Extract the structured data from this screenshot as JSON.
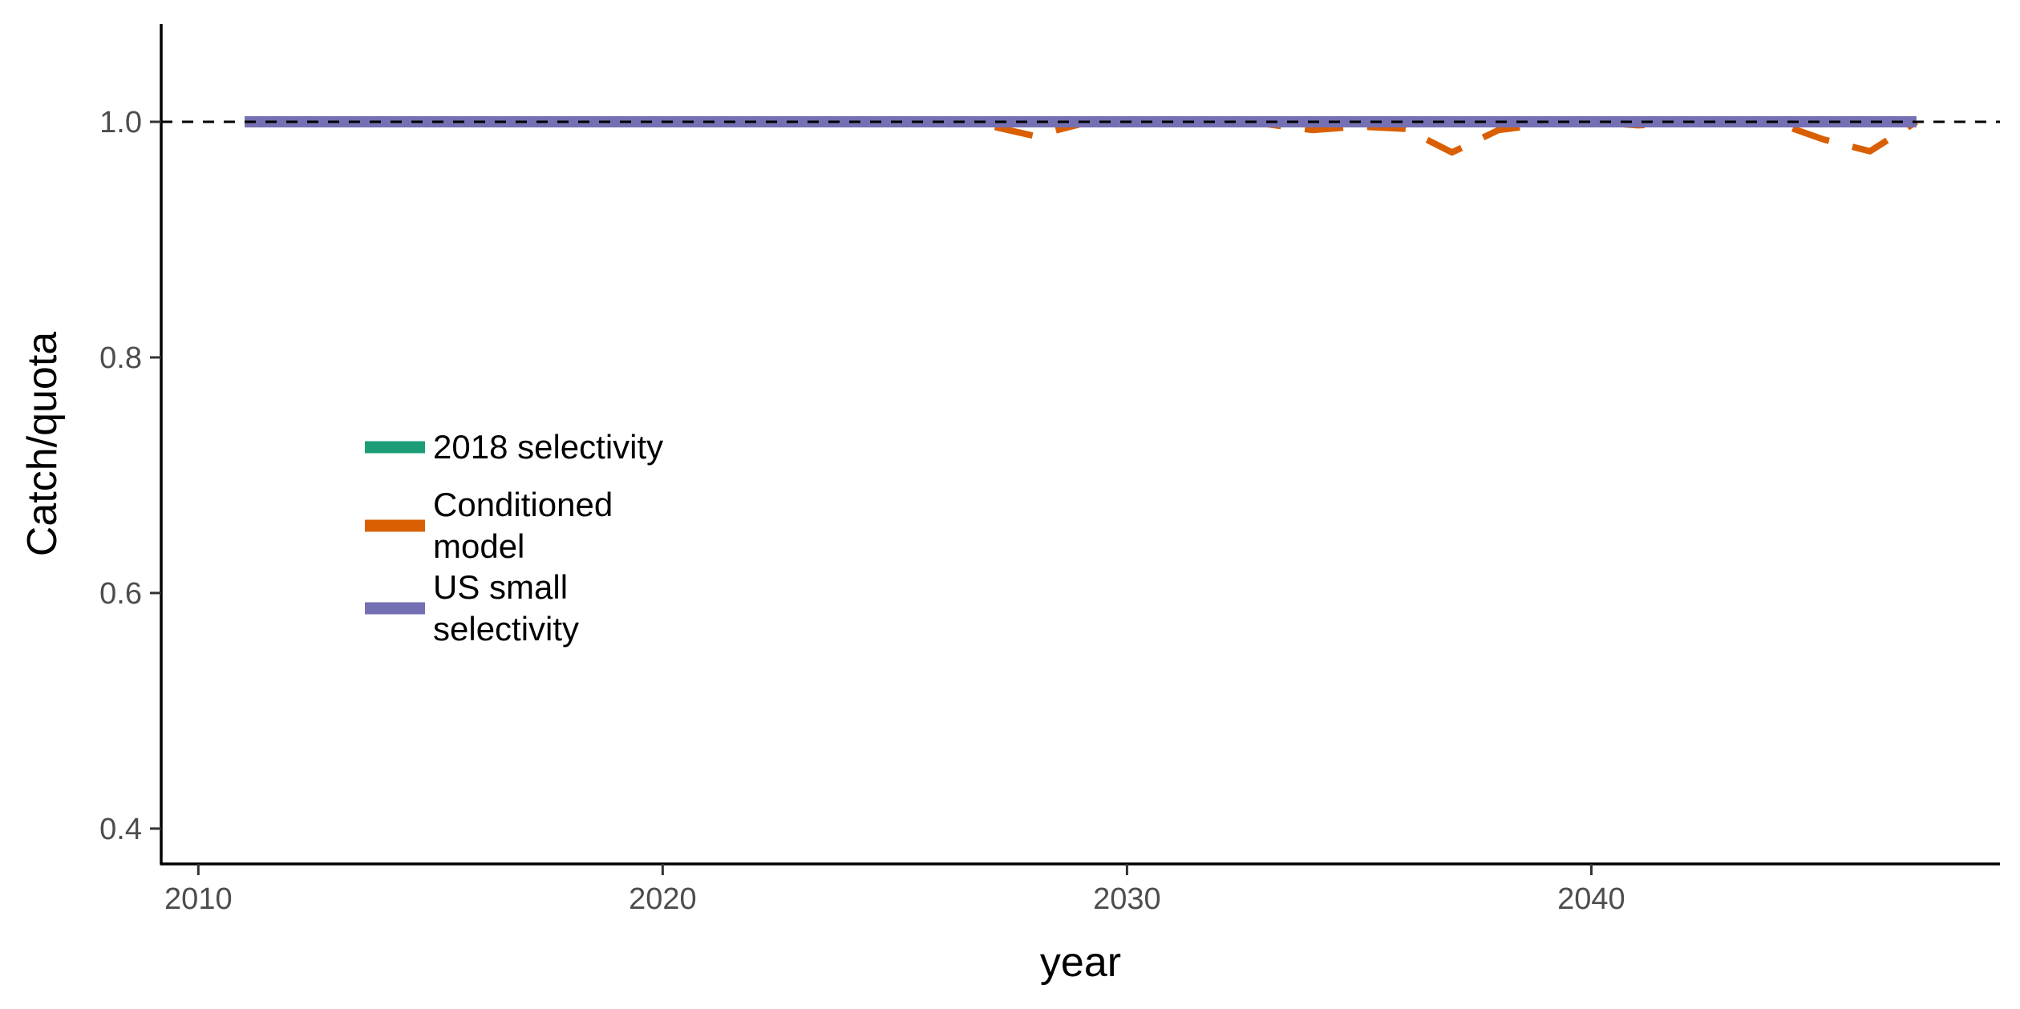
{
  "chart_data": {
    "type": "line",
    "xlabel": "year",
    "ylabel": "Catch/quota",
    "xlim": [
      2009.2,
      2048.8
    ],
    "ylim": [
      0.37,
      1.083
    ],
    "x_ticks": [
      2010,
      2020,
      2030,
      2040
    ],
    "y_ticks": [
      0.4,
      0.6,
      0.8,
      1.0
    ],
    "y_tick_labels": [
      "0.4",
      "0.6",
      "0.8",
      "1.0"
    ],
    "reference_line": {
      "y": 1.0,
      "style": "dashed",
      "color": "#000000"
    },
    "grid": false,
    "legend_position": "left-center",
    "series": [
      {
        "name": "2018 selectivity",
        "color": "#1b9e77",
        "linetype": "solid",
        "x": [
          2011,
          2012,
          2013,
          2014,
          2015,
          2016,
          2017,
          2018,
          2019,
          2020,
          2021,
          2022,
          2023,
          2024,
          2025,
          2026,
          2027,
          2028,
          2029,
          2030,
          2031,
          2032,
          2033,
          2034,
          2035,
          2036,
          2037,
          2038,
          2039,
          2040,
          2041,
          2042,
          2043,
          2044,
          2045,
          2046,
          2047
        ],
        "y": [
          1.0,
          1.0,
          1.0,
          1.0,
          1.0,
          1.0,
          1.0,
          1.0,
          1.0,
          1.0,
          1.0,
          1.0,
          1.0,
          1.0,
          1.0,
          1.0,
          1.0,
          1.0,
          1.0,
          1.0,
          1.0,
          1.0,
          1.0,
          1.0,
          1.0,
          1.0,
          1.0,
          1.0,
          1.0,
          1.0,
          1.0,
          1.0,
          1.0,
          1.0,
          1.0,
          1.0,
          1.0
        ]
      },
      {
        "name": "Conditioned\nmodel",
        "color": "#d95f02",
        "linetype": "dashed",
        "x": [
          2011,
          2012,
          2013,
          2014,
          2015,
          2016,
          2017,
          2018,
          2019,
          2020,
          2021,
          2022,
          2023,
          2024,
          2025,
          2026,
          2027,
          2028,
          2029,
          2030,
          2031,
          2032,
          2033,
          2034,
          2035,
          2036,
          2037,
          2038,
          2039,
          2040,
          2041,
          2042,
          2043,
          2044,
          2045,
          2046,
          2047
        ],
        "y": [
          1.0,
          1.0,
          1.0,
          1.0,
          1.0,
          1.0,
          1.0,
          1.0,
          1.0,
          1.0,
          1.0,
          1.0,
          1.0,
          1.0,
          1.0,
          1.0,
          0.997,
          0.988,
          0.998,
          1.0,
          1.0,
          1.0,
          0.998,
          0.993,
          0.996,
          0.994,
          0.974,
          0.993,
          0.998,
          1.0,
          0.997,
          0.999,
          1.0,
          0.999,
          0.985,
          0.975,
          1.0
        ]
      },
      {
        "name": "US small\nselectivity",
        "color": "#7570b3",
        "linetype": "solid",
        "x": [
          2011,
          2012,
          2013,
          2014,
          2015,
          2016,
          2017,
          2018,
          2019,
          2020,
          2021,
          2022,
          2023,
          2024,
          2025,
          2026,
          2027,
          2028,
          2029,
          2030,
          2031,
          2032,
          2033,
          2034,
          2035,
          2036,
          2037,
          2038,
          2039,
          2040,
          2041,
          2042,
          2043,
          2044,
          2045,
          2046,
          2047
        ],
        "y": [
          1.0,
          1.0,
          1.0,
          1.0,
          1.0,
          1.0,
          1.0,
          1.0,
          1.0,
          1.0,
          1.0,
          1.0,
          1.0,
          1.0,
          1.0,
          1.0,
          1.0,
          1.0,
          1.0,
          1.0,
          1.0,
          1.0,
          1.0,
          1.0,
          1.0,
          1.0,
          1.0,
          1.0,
          1.0,
          1.0,
          1.0,
          1.0,
          1.0,
          1.0,
          1.0,
          1.0,
          1.0
        ]
      }
    ]
  }
}
